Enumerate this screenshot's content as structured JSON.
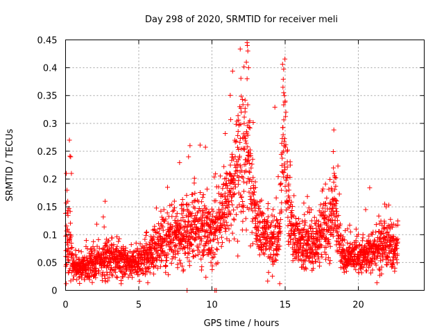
{
  "chart_data": {
    "type": "scatter",
    "title": "Day 298 of 2020, SRMTID for receiver meli",
    "xlabel": "GPS time / hours",
    "ylabel": "SRMTID / TECUs",
    "xlim": [
      0,
      24.5
    ],
    "ylim": [
      0,
      0.45
    ],
    "xticks": [
      0,
      5,
      10,
      15,
      20
    ],
    "xtick_labels": [
      "0",
      "5",
      "10",
      "15",
      "20"
    ],
    "yticks": [
      0,
      0.05,
      0.1,
      0.15,
      0.2,
      0.25,
      0.3,
      0.35,
      0.4,
      0.45
    ],
    "ytick_labels": [
      "0",
      "0.05",
      "0.1",
      "0.15",
      "0.2",
      "0.25",
      "0.3",
      "0.35",
      "0.4",
      "0.45"
    ],
    "grid": true,
    "marker": "+",
    "color": "#ff0000",
    "envelope": [
      [
        0.0,
        0.08,
        0.06
      ],
      [
        0.3,
        0.1,
        0.07
      ],
      [
        0.5,
        0.04,
        0.02
      ],
      [
        1.0,
        0.04,
        0.02
      ],
      [
        2.0,
        0.05,
        0.025
      ],
      [
        3.0,
        0.06,
        0.03
      ],
      [
        4.0,
        0.05,
        0.025
      ],
      [
        5.0,
        0.05,
        0.025
      ],
      [
        6.0,
        0.07,
        0.035
      ],
      [
        7.0,
        0.09,
        0.04
      ],
      [
        8.0,
        0.1,
        0.045
      ],
      [
        9.0,
        0.11,
        0.05
      ],
      [
        10.0,
        0.1,
        0.05
      ],
      [
        11.0,
        0.15,
        0.06
      ],
      [
        11.8,
        0.22,
        0.09
      ],
      [
        12.3,
        0.24,
        0.11
      ],
      [
        12.6,
        0.2,
        0.08
      ],
      [
        13.0,
        0.13,
        0.05
      ],
      [
        14.0,
        0.08,
        0.04
      ],
      [
        14.6,
        0.1,
        0.05
      ],
      [
        14.9,
        0.28,
        0.1
      ],
      [
        15.2,
        0.16,
        0.07
      ],
      [
        15.5,
        0.1,
        0.05
      ],
      [
        16.0,
        0.08,
        0.04
      ],
      [
        17.0,
        0.08,
        0.04
      ],
      [
        18.0,
        0.12,
        0.06
      ],
      [
        18.3,
        0.15,
        0.06
      ],
      [
        19.0,
        0.06,
        0.025
      ],
      [
        20.0,
        0.06,
        0.025
      ],
      [
        21.0,
        0.07,
        0.03
      ],
      [
        22.0,
        0.08,
        0.035
      ],
      [
        22.7,
        0.07,
        0.03
      ]
    ],
    "peaks": [
      {
        "x": 0.05,
        "y": 0.21
      },
      {
        "x": 0.1,
        "y": 0.18
      },
      {
        "x": 0.15,
        "y": 0.16
      },
      {
        "x": 0.3,
        "y": 0.241
      },
      {
        "x": 0.35,
        "y": 0.24
      },
      {
        "x": 0.4,
        "y": 0.21
      },
      {
        "x": 2.7,
        "y": 0.16
      },
      {
        "x": 8.4,
        "y": 0.24
      },
      {
        "x": 8.5,
        "y": 0.26
      },
      {
        "x": 11.9,
        "y": 0.33
      },
      {
        "x": 12.0,
        "y": 0.32
      },
      {
        "x": 12.2,
        "y": 0.3
      },
      {
        "x": 12.4,
        "y": 0.445
      },
      {
        "x": 12.42,
        "y": 0.44
      },
      {
        "x": 12.45,
        "y": 0.43
      },
      {
        "x": 12.35,
        "y": 0.41
      },
      {
        "x": 12.5,
        "y": 0.4
      },
      {
        "x": 12.4,
        "y": 0.38
      },
      {
        "x": 14.85,
        "y": 0.365
      },
      {
        "x": 14.9,
        "y": 0.355
      },
      {
        "x": 14.95,
        "y": 0.35
      },
      {
        "x": 15.0,
        "y": 0.34
      },
      {
        "x": 15.05,
        "y": 0.32
      },
      {
        "x": 18.3,
        "y": 0.22
      },
      {
        "x": 18.35,
        "y": 0.21
      },
      {
        "x": 21.8,
        "y": 0.155
      },
      {
        "x": 21.9,
        "y": 0.15
      },
      {
        "x": 20.5,
        "y": 0.145
      }
    ],
    "zero_points": [
      {
        "x": 8.3,
        "y": 0.0
      },
      {
        "x": 10.2,
        "y": 0.0
      },
      {
        "x": 10.3,
        "y": 0.0
      }
    ]
  }
}
